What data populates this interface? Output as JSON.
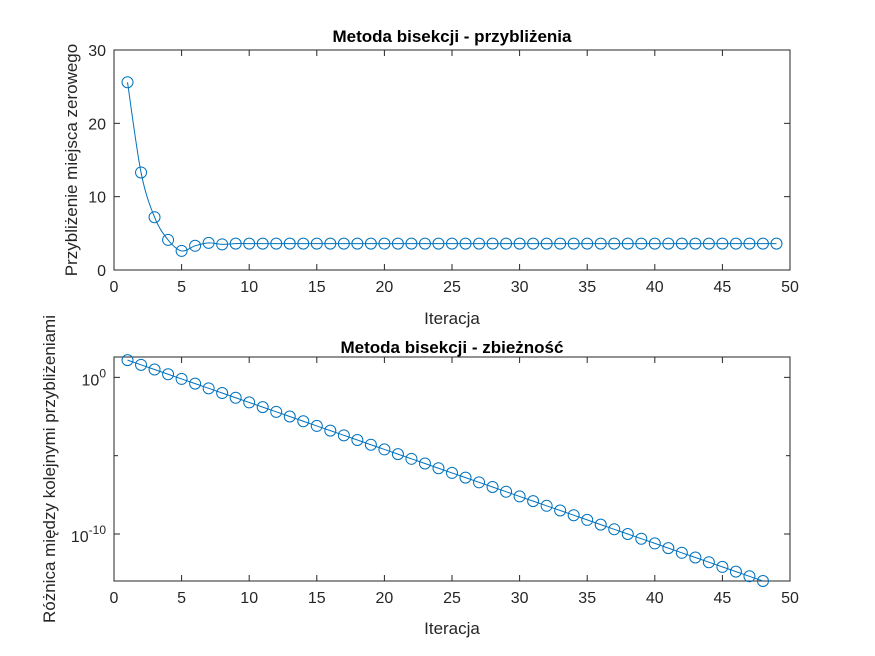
{
  "colors": {
    "series": "#0072BD",
    "axis": "#262626",
    "background": "#ffffff"
  },
  "chart_data": [
    {
      "type": "line",
      "title": "Metoda bisekcji - przybliżenia",
      "xlabel": "Iteracja",
      "ylabel": "Przybliżenie miejsca zerowego",
      "xlim": [
        0,
        50
      ],
      "ylim": [
        0,
        30
      ],
      "yscale": "linear",
      "grid": false,
      "marker": "circle",
      "xticks": [
        "0",
        "5",
        "10",
        "15",
        "20",
        "25",
        "30",
        "35",
        "40",
        "45",
        "50"
      ],
      "yticks": [
        "0",
        "10",
        "20",
        "30"
      ],
      "series": [
        {
          "x": [
            1,
            2,
            3,
            4,
            5,
            6,
            7,
            8,
            9,
            10,
            11,
            12,
            13,
            14,
            15,
            16,
            17,
            18,
            19,
            20,
            21,
            22,
            23,
            24,
            25,
            26,
            27,
            28,
            29,
            30,
            31,
            32,
            33,
            34,
            35,
            36,
            37,
            38,
            39,
            40,
            41,
            42,
            43,
            44,
            45,
            46,
            47,
            48,
            49
          ],
          "values": [
            25.6,
            13.3,
            7.2,
            4.1,
            2.6,
            3.3,
            3.7,
            3.5,
            3.6,
            3.6,
            3.6,
            3.6,
            3.6,
            3.6,
            3.6,
            3.6,
            3.6,
            3.6,
            3.6,
            3.6,
            3.6,
            3.6,
            3.6,
            3.6,
            3.6,
            3.6,
            3.6,
            3.6,
            3.6,
            3.6,
            3.6,
            3.6,
            3.6,
            3.6,
            3.6,
            3.6,
            3.6,
            3.6,
            3.6,
            3.6,
            3.6,
            3.6,
            3.6,
            3.6,
            3.6,
            3.6,
            3.6,
            3.6,
            3.6
          ]
        }
      ]
    },
    {
      "type": "line",
      "title": "Metoda bisekcji - zbieżność",
      "xlabel": "Iteracja",
      "ylabel": "Różnica między kolejnymi przybliżeniami",
      "xlim": [
        0,
        50
      ],
      "ylim_log10": [
        -13,
        1.3
      ],
      "yscale": "log",
      "grid": false,
      "marker": "circle",
      "xticks": [
        "0",
        "5",
        "10",
        "15",
        "20",
        "25",
        "30",
        "35",
        "40",
        "45",
        "50"
      ],
      "yticks": [
        {
          "base": "10",
          "exp": "0",
          "log10": 0
        },
        {
          "base": "10",
          "exp": "-10",
          "log10": -10
        }
      ],
      "series": [
        {
          "x": [
            1,
            2,
            3,
            4,
            5,
            6,
            7,
            8,
            9,
            10,
            11,
            12,
            13,
            14,
            15,
            16,
            17,
            18,
            19,
            20,
            21,
            22,
            23,
            24,
            25,
            26,
            27,
            28,
            29,
            30,
            31,
            32,
            33,
            34,
            35,
            36,
            37,
            38,
            39,
            40,
            41,
            42,
            43,
            44,
            45,
            46,
            47,
            48
          ],
          "log10_values": [
            1.1,
            0.8,
            0.5,
            0.2,
            -0.1,
            -0.4,
            -0.7,
            -1.0,
            -1.3,
            -1.6,
            -1.9,
            -2.2,
            -2.5,
            -2.8,
            -3.1,
            -3.4,
            -3.7,
            -4.0,
            -4.3,
            -4.6,
            -4.9,
            -5.2,
            -5.5,
            -5.8,
            -6.1,
            -6.4,
            -6.7,
            -7.0,
            -7.3,
            -7.6,
            -7.9,
            -8.2,
            -8.5,
            -8.8,
            -9.1,
            -9.4,
            -9.7,
            -10.0,
            -10.3,
            -10.6,
            -10.9,
            -11.2,
            -11.5,
            -11.8,
            -12.1,
            -12.4,
            -12.7,
            -13.0
          ]
        }
      ]
    }
  ]
}
